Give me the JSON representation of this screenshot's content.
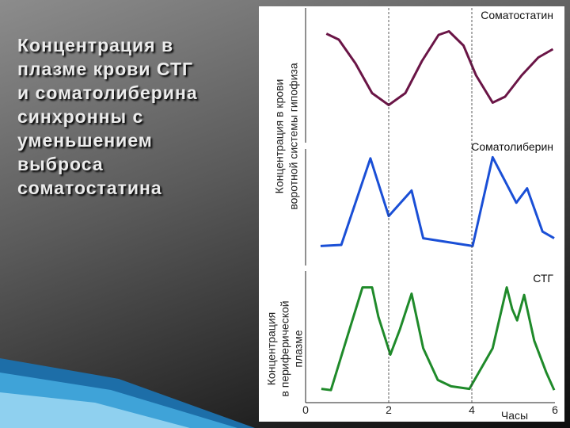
{
  "slide_title": [
    "Концентрация в",
    "плазме крови СТГ",
    "и соматолиберина",
    "синхронны с",
    "уменьшением",
    "выброса",
    "соматостатина"
  ],
  "ylabel_portal": [
    "Концентрация в крови",
    "воротной системы гипофиза"
  ],
  "chart_data": [
    {
      "type": "line",
      "name": "Соматостатин",
      "color": "#6a1546",
      "xlim": [
        0,
        6
      ],
      "ylim": [
        0,
        100
      ],
      "x": [
        0.5,
        0.8,
        1.2,
        1.6,
        2.0,
        2.4,
        2.8,
        3.2,
        3.45,
        3.8,
        4.1,
        4.5,
        4.8,
        5.2,
        5.6,
        5.95
      ],
      "values": [
        85,
        80,
        60,
        35,
        25,
        35,
        62,
        84,
        87,
        75,
        50,
        27,
        32,
        50,
        65,
        72
      ]
    },
    {
      "type": "line",
      "name": "Соматолиберин",
      "color": "#1a4fd6",
      "xlim": [
        0,
        6
      ],
      "ylim": [
        0,
        100
      ],
      "x": [
        0.36,
        0.86,
        1.56,
        2.0,
        2.55,
        2.83,
        4.02,
        4.5,
        5.07,
        5.33,
        5.7,
        5.98
      ],
      "values": [
        14,
        15,
        93,
        41,
        64,
        21,
        14,
        94,
        53,
        66,
        27,
        21
      ]
    },
    {
      "type": "line",
      "name": "СТГ",
      "color": "#1f8a2a",
      "xlim": [
        0,
        6
      ],
      "ylim": [
        0,
        100
      ],
      "x": [
        0.38,
        0.61,
        1.03,
        1.37,
        1.6,
        1.75,
        2.04,
        2.27,
        2.55,
        2.83,
        3.18,
        3.5,
        3.94,
        4.17,
        4.5,
        4.84,
        4.97,
        5.09,
        5.26,
        5.5,
        5.79,
        5.98
      ],
      "values": [
        9,
        8,
        53,
        89,
        89,
        66,
        36,
        56,
        84,
        41,
        16,
        11,
        9,
        22,
        41,
        89,
        72,
        63,
        83,
        47,
        22,
        8
      ],
      "xticks": [
        0,
        2,
        4,
        6
      ],
      "xlabel": "Часы",
      "ylabel": [
        "Концентрация",
        "в периферической",
        "плазме"
      ]
    }
  ]
}
